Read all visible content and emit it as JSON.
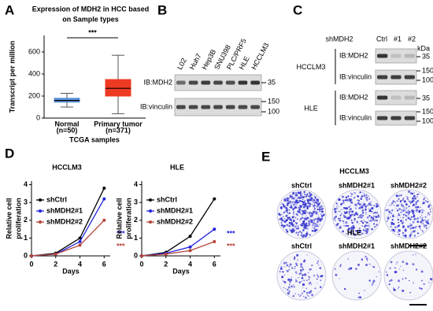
{
  "panels": [
    "A",
    "B",
    "C",
    "D",
    "E"
  ],
  "chart_data": [
    {
      "type": "box",
      "title": [
        "Expression of MDH2 in HCC based",
        "on Sample types"
      ],
      "categories": [
        "Normal",
        "Primary tumor"
      ],
      "category_notes": [
        "(n=50)",
        "(n=371)"
      ],
      "xlabel": "TCGA samples",
      "ylabel": "Transcript per million",
      "ylim": [
        0,
        750
      ],
      "yticks": [
        0,
        200,
        400,
        600
      ],
      "annotation": "***",
      "series": [
        {
          "name": "Normal",
          "color": "#5b8fd6",
          "min": 100,
          "q1": 145,
          "median": 160,
          "q3": 180,
          "max": 225
        },
        {
          "name": "Primary tumor",
          "color": "#ee3a22",
          "min": 40,
          "q1": 200,
          "median": 270,
          "q3": 350,
          "max": 570
        }
      ]
    },
    {
      "type": "line",
      "title": "HCCLM3",
      "xlabel": "Days",
      "ylabel": [
        "Relative cell",
        "proliferation"
      ],
      "x": [
        0,
        2,
        4,
        6
      ],
      "xlim": [
        0,
        6.5
      ],
      "xticks": [
        0,
        2,
        4,
        6
      ],
      "ylim": [
        0,
        4.2
      ],
      "yticks": [
        0,
        1,
        2,
        3,
        4
      ],
      "series": [
        {
          "name": "shCtrl",
          "color": "#000000",
          "values": [
            0,
            0.15,
            1.0,
            3.8
          ]
        },
        {
          "name": "shMDH2#1",
          "color": "#2222dd",
          "values": [
            0,
            0.1,
            0.8,
            3.2
          ],
          "annotation": "***"
        },
        {
          "name": "shMDH2#2",
          "color": "#b5453a",
          "values": [
            0,
            0.1,
            0.6,
            2.0
          ],
          "annotation": "***"
        }
      ]
    },
    {
      "type": "line",
      "title": "HLE",
      "xlabel": "Days",
      "ylabel": [
        "Relative cell",
        "proliferation"
      ],
      "x": [
        0,
        2,
        4,
        6
      ],
      "xlim": [
        0,
        6.5
      ],
      "xticks": [
        0,
        2,
        4,
        6
      ],
      "ylim": [
        0,
        4.2
      ],
      "yticks": [
        0,
        1,
        2,
        3,
        4
      ],
      "series": [
        {
          "name": "shCtrl",
          "color": "#000000",
          "values": [
            0,
            0.2,
            1.1,
            3.2
          ]
        },
        {
          "name": "shMDH2#1",
          "color": "#2222dd",
          "values": [
            0,
            0.15,
            0.5,
            1.5
          ],
          "annotation": "***"
        },
        {
          "name": "shMDH2#2",
          "color": "#b5453a",
          "values": [
            0,
            0.1,
            0.3,
            0.8
          ],
          "annotation": "***"
        }
      ]
    }
  ],
  "blot_b": {
    "lanes": [
      "L02",
      "Huh7",
      "Hep3B",
      "SNU398",
      "PLC/PRF5",
      "HLE",
      "HCCLM3"
    ],
    "rows": [
      "IB:MDH2",
      "IB:vinculin"
    ],
    "markers": [
      "35",
      "150",
      "100"
    ]
  },
  "blot_c": {
    "group": "shMDH2",
    "lanes": [
      "Ctrl",
      "#1",
      "#2"
    ],
    "unit": "kDa",
    "blocks": [
      {
        "cell": "HCCLM3",
        "rows": [
          "IB:MDH2",
          "IB:vinculin"
        ],
        "markers": [
          "35",
          "150",
          "100"
        ]
      },
      {
        "cell": "HLE",
        "rows": [
          "IB:MDH2",
          "IB:vinculin"
        ],
        "markers": [
          "35",
          "150",
          "100"
        ]
      }
    ]
  },
  "colony": {
    "blocks": [
      {
        "cell": "HCCLM3",
        "labels": [
          "shCtrl",
          "shMDH2#1",
          "shMDH2#2"
        ]
      },
      {
        "cell": "HLE",
        "labels": [
          "shCtrl",
          "shMDH2#1",
          "shMDH2#2"
        ]
      }
    ]
  }
}
